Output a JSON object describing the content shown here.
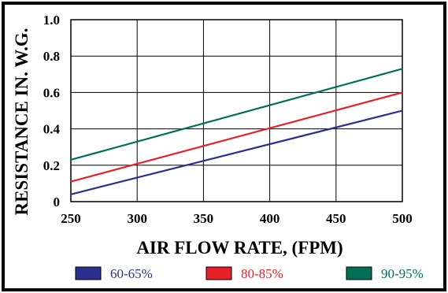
{
  "chart_data": {
    "type": "line",
    "xlabel": "AIR FLOW RATE, (FPM)",
    "ylabel": "RESISTANCE IN. W.G.",
    "xlim": [
      250,
      500
    ],
    "ylim": [
      0,
      1.0
    ],
    "x_ticks": [
      "250",
      "300",
      "350",
      "400",
      "450",
      "500"
    ],
    "y_ticks": [
      "0",
      "0.2",
      "0.4",
      "0.6",
      "0.8",
      "1.0"
    ],
    "grid": true,
    "legend_position": "bottom",
    "series": [
      {
        "name": "60-65%",
        "color": "#2b2f8f",
        "x": [
          250,
          500
        ],
        "y": [
          0.04,
          0.5
        ]
      },
      {
        "name": "80-85%",
        "color": "#e8202a",
        "x": [
          250,
          500
        ],
        "y": [
          0.11,
          0.6
        ]
      },
      {
        "name": "90-95%",
        "color": "#006f5a",
        "x": [
          250,
          500
        ],
        "y": [
          0.23,
          0.73
        ]
      }
    ]
  }
}
